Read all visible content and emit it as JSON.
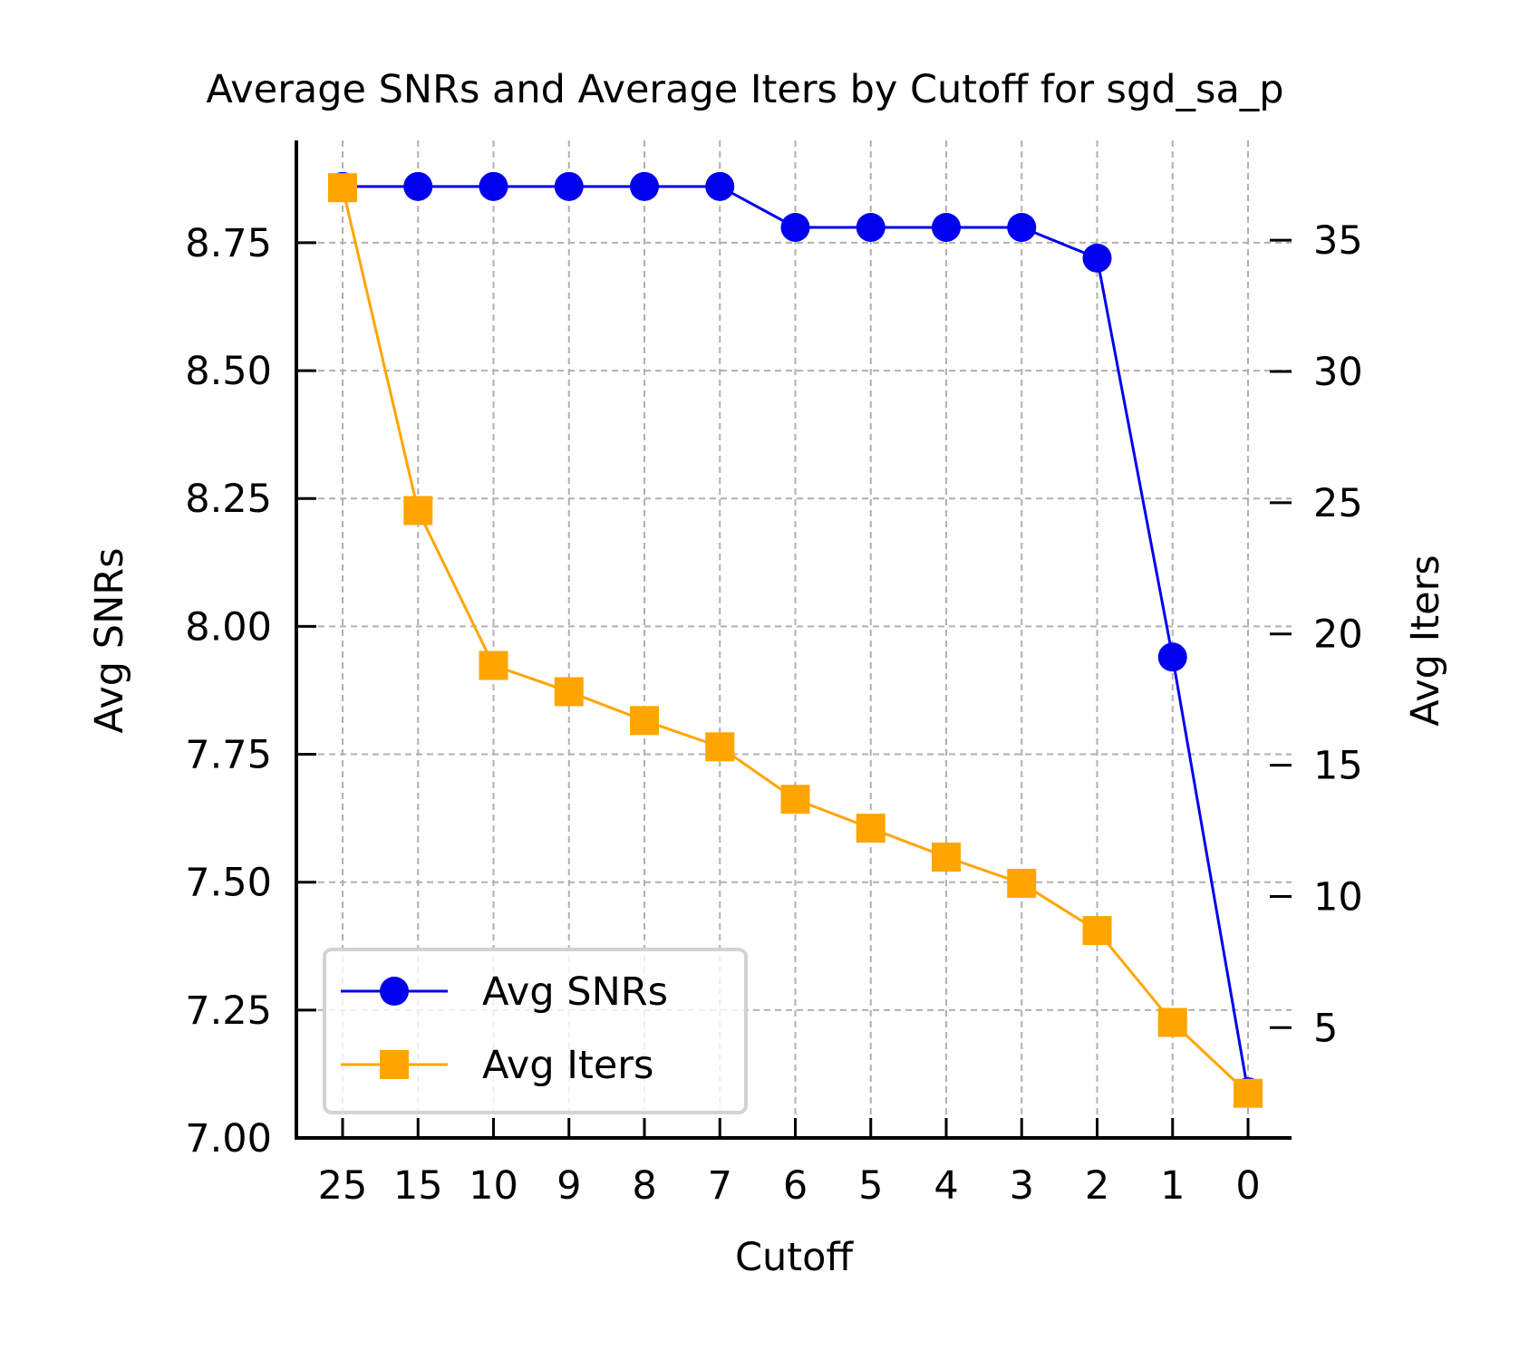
{
  "chart_data": {
    "type": "line",
    "title": "Average SNRs and Average Iters by Cutoff for sgd_sa_p",
    "xlabel": "Cutoff",
    "ylabel": "Avg SNRs",
    "y2label": "Avg Iters",
    "categories": [
      "25",
      "15",
      "10",
      "9",
      "8",
      "7",
      "6",
      "5",
      "4",
      "3",
      "2",
      "1",
      "0"
    ],
    "ylim": [
      7.0,
      8.95
    ],
    "y_ticks": [
      "7.00",
      "7.25",
      "7.50",
      "7.75",
      "8.00",
      "8.25",
      "8.50",
      "8.75"
    ],
    "y2lim": [
      0.8,
      38.8
    ],
    "y2_ticks": [
      "5",
      "10",
      "15",
      "20",
      "25",
      "30",
      "35"
    ],
    "grid": true,
    "legend_position": "bottom-left",
    "series": [
      {
        "name": "Avg SNRs",
        "axis": "left",
        "color": "#0000ee",
        "marker": "circle",
        "values": [
          8.86,
          8.86,
          8.86,
          8.86,
          8.86,
          8.86,
          8.78,
          8.78,
          8.78,
          8.78,
          8.72,
          7.94,
          7.09
        ]
      },
      {
        "name": "Avg Iters",
        "axis": "right",
        "color": "#ffa500",
        "marker": "square",
        "values": [
          37.0,
          24.7,
          18.8,
          17.8,
          16.7,
          15.7,
          13.7,
          12.6,
          11.5,
          10.5,
          8.7,
          5.2,
          2.5
        ]
      }
    ]
  }
}
